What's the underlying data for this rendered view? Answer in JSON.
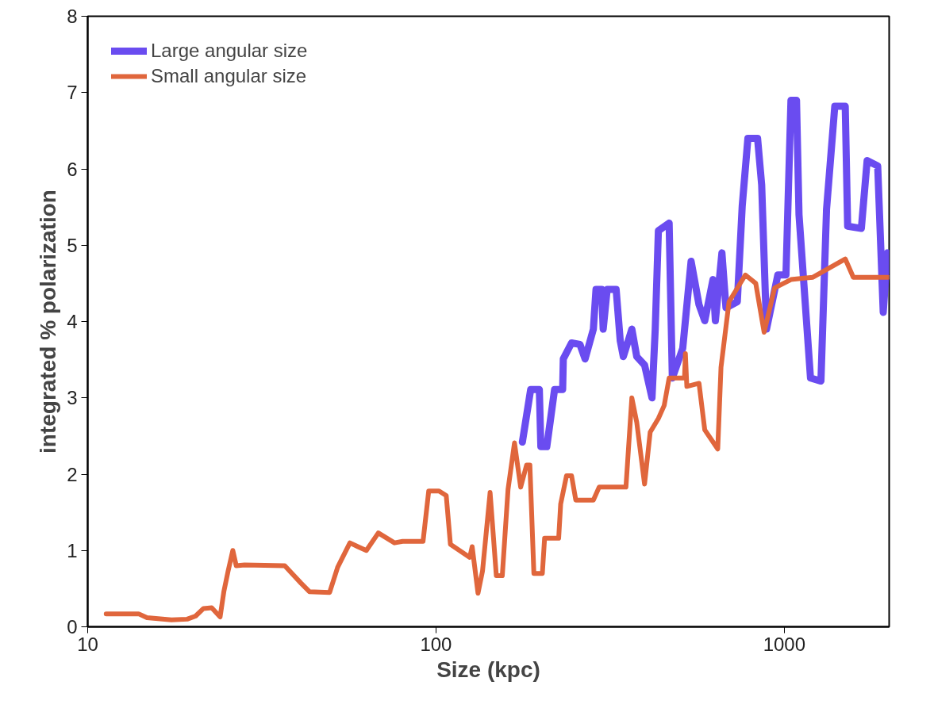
{
  "chart_data": {
    "type": "line",
    "xlabel": "Size (kpc)",
    "ylabel": "integrated % polarization",
    "log": "x",
    "xlim": [
      10,
      2000
    ],
    "xticks": [
      10,
      100,
      1000
    ],
    "ylim": [
      0,
      8
    ],
    "yticks": [
      0,
      1,
      2,
      3,
      4,
      5,
      6,
      7,
      8
    ],
    "grid": false,
    "legend": "top left",
    "line_style": "solid",
    "marker": "none",
    "series": [
      {
        "name": "Large angular size",
        "color": "#6a4cf0",
        "x": [
          177,
          187,
          198,
          200,
          208,
          219,
          231,
          232,
          245,
          259,
          268,
          283,
          288,
          299,
          302,
          310,
          329,
          338,
          345,
          365,
          377,
          397,
          417,
          426,
          435,
          467,
          477,
          511,
          540,
          569,
          591,
          624,
          634,
          662,
          680,
          733,
          757,
          786,
          838,
          861,
          889,
          958,
          1011,
          1045,
          1084,
          1102,
          1189,
          1274,
          1322,
          1396,
          1496,
          1520,
          1664,
          1729,
          1854,
          1923,
          1977
        ],
        "values": [
          2.42,
          3.11,
          3.11,
          2.36,
          2.36,
          3.11,
          3.11,
          3.51,
          3.72,
          3.7,
          3.51,
          3.9,
          4.42,
          4.42,
          3.9,
          4.42,
          4.42,
          3.75,
          3.54,
          3.9,
          3.54,
          3.43,
          3.0,
          3.9,
          5.19,
          5.29,
          3.26,
          3.65,
          4.79,
          4.22,
          4.01,
          4.55,
          4.01,
          4.9,
          4.18,
          4.26,
          5.51,
          6.4,
          6.4,
          5.79,
          3.9,
          4.61,
          4.61,
          6.9,
          6.9,
          5.4,
          3.26,
          3.22,
          5.47,
          6.82,
          6.82,
          5.25,
          5.22,
          6.11,
          6.04,
          4.12,
          4.9
        ]
      },
      {
        "name": "Small angular size",
        "color": "#e0663c",
        "x": [
          11.3,
          14.0,
          14.8,
          17.4,
          19.3,
          20.4,
          21.5,
          22.7,
          24.0,
          24.6,
          25.3,
          26.1,
          26.7,
          28.2,
          36.8,
          41.0,
          43.3,
          49.5,
          52.2,
          56.6,
          59.7,
          63.1,
          68.3,
          76.0,
          80.2,
          91.8,
          95.3,
          102,
          107,
          110,
          125,
          127,
          132,
          136,
          143,
          149,
          155,
          161,
          168,
          175,
          182,
          186,
          191,
          202,
          205,
          225,
          228,
          237,
          245,
          252,
          283,
          294,
          351,
          365,
          377,
          397,
          412,
          435,
          452,
          467,
          517,
          520,
          525,
          569,
          591,
          644,
          658,
          694,
          773,
          828,
          875,
          938,
          1045,
          1208,
          1496,
          1578,
          1987
        ],
        "values": [
          0.17,
          0.17,
          0.12,
          0.09,
          0.1,
          0.14,
          0.24,
          0.25,
          0.13,
          0.46,
          0.73,
          1.0,
          0.8,
          0.81,
          0.8,
          0.57,
          0.46,
          0.45,
          0.78,
          1.1,
          1.05,
          1.0,
          1.23,
          1.1,
          1.12,
          1.12,
          1.78,
          1.78,
          1.72,
          1.08,
          0.91,
          1.05,
          0.44,
          0.73,
          1.76,
          0.67,
          0.67,
          1.8,
          2.41,
          1.83,
          2.12,
          2.12,
          0.7,
          0.7,
          1.16,
          1.16,
          1.61,
          1.98,
          1.98,
          1.66,
          1.66,
          1.83,
          1.83,
          3.0,
          2.68,
          1.87,
          2.55,
          2.73,
          2.9,
          3.26,
          3.26,
          3.58,
          3.15,
          3.19,
          2.58,
          2.33,
          3.4,
          4.26,
          4.61,
          4.5,
          3.86,
          4.44,
          4.55,
          4.58,
          4.82,
          4.58,
          4.58
        ]
      }
    ]
  }
}
